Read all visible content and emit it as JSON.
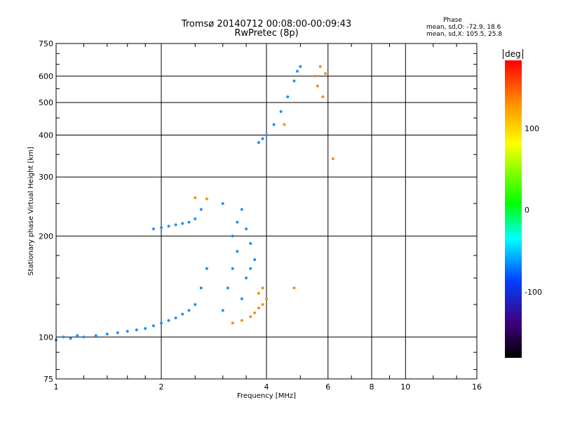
{
  "header": {
    "title_line1": "Tromsø 20140712 00:08:00-00:09:43",
    "title_line2": "RwPretec (8p)",
    "phase_heading": "Phase",
    "phase_o": "mean, sd,O: -72.9, 18.6",
    "phase_x": "mean, sd,X: 105.5, 25.8"
  },
  "colorbar": {
    "unit_label": "deg",
    "ticks": [
      "100",
      "0",
      "-100"
    ],
    "colors": [
      "#ff0000",
      "#ff8c00",
      "#ffff00",
      "#00ff00",
      "#00ffff",
      "#0040ff",
      "#400080",
      "#000000"
    ]
  },
  "chart_data": {
    "type": "scatter",
    "xlabel": "Frequency [MHz]",
    "ylabel": "Stationary phase Virtual Height [km]",
    "xscale": "log",
    "yscale": "log",
    "xlim": [
      1,
      16
    ],
    "ylim": [
      75,
      750
    ],
    "x_ticks": [
      1,
      2,
      4,
      6,
      8,
      10,
      16
    ],
    "y_ticks": [
      75,
      100,
      200,
      300,
      400,
      500,
      600,
      750
    ],
    "grid": true,
    "series": [
      {
        "name": "O",
        "color": "#1e90ff",
        "points": [
          [
            1.0,
            98
          ],
          [
            1.05,
            100
          ],
          [
            1.1,
            99
          ],
          [
            1.15,
            101
          ],
          [
            1.2,
            100
          ],
          [
            1.3,
            101
          ],
          [
            1.4,
            102
          ],
          [
            1.5,
            103
          ],
          [
            1.6,
            104
          ],
          [
            1.7,
            105
          ],
          [
            1.8,
            106
          ],
          [
            1.9,
            108
          ],
          [
            2.0,
            110
          ],
          [
            2.1,
            112
          ],
          [
            2.2,
            114
          ],
          [
            2.3,
            117
          ],
          [
            2.4,
            120
          ],
          [
            2.5,
            125
          ],
          [
            2.6,
            140
          ],
          [
            2.7,
            160
          ],
          [
            1.9,
            210
          ],
          [
            2.0,
            212
          ],
          [
            2.1,
            214
          ],
          [
            2.2,
            216
          ],
          [
            2.3,
            218
          ],
          [
            2.4,
            220
          ],
          [
            2.5,
            225
          ],
          [
            2.6,
            240
          ],
          [
            3.0,
            120
          ],
          [
            3.1,
            140
          ],
          [
            3.2,
            160
          ],
          [
            3.3,
            180
          ],
          [
            3.2,
            200
          ],
          [
            3.3,
            220
          ],
          [
            3.4,
            240
          ],
          [
            3.5,
            210
          ],
          [
            3.6,
            190
          ],
          [
            3.7,
            170
          ],
          [
            3.4,
            130
          ],
          [
            3.5,
            150
          ],
          [
            3.6,
            160
          ],
          [
            3.0,
            250
          ],
          [
            3.8,
            380
          ],
          [
            3.9,
            390
          ],
          [
            4.0,
            400
          ],
          [
            4.2,
            430
          ],
          [
            4.4,
            470
          ],
          [
            4.6,
            520
          ],
          [
            4.8,
            580
          ],
          [
            4.9,
            620
          ],
          [
            5.0,
            640
          ]
        ]
      },
      {
        "name": "X",
        "color": "#ff8c00",
        "points": [
          [
            3.2,
            110
          ],
          [
            3.4,
            112
          ],
          [
            3.6,
            115
          ],
          [
            3.7,
            118
          ],
          [
            3.8,
            122
          ],
          [
            3.9,
            125
          ],
          [
            4.0,
            130
          ],
          [
            3.8,
            135
          ],
          [
            3.9,
            140
          ],
          [
            2.5,
            260
          ],
          [
            2.7,
            258
          ],
          [
            4.5,
            430
          ],
          [
            4.8,
            140
          ],
          [
            5.5,
            600
          ],
          [
            5.7,
            640
          ],
          [
            5.6,
            560
          ],
          [
            5.8,
            520
          ],
          [
            5.9,
            610
          ],
          [
            6.2,
            340
          ]
        ]
      }
    ]
  }
}
